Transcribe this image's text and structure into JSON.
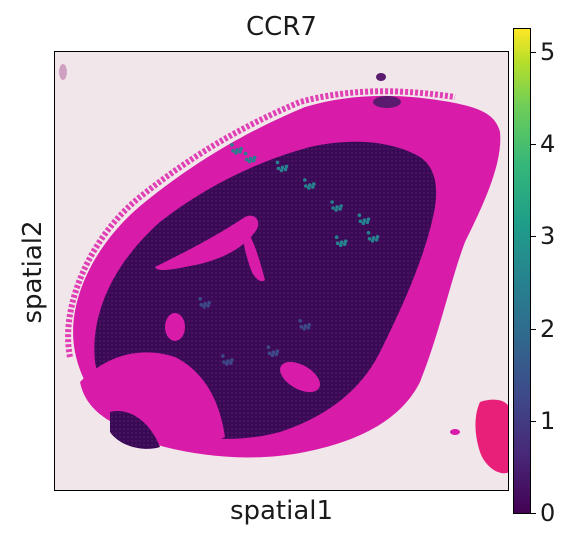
{
  "chart_data": {
    "type": "heatmap",
    "title": "CCR7",
    "xlabel": "spatial1",
    "ylabel": "spatial2",
    "colorbar": {
      "colormap": "viridis",
      "range": [
        0,
        5.25
      ],
      "ticks": [
        "0",
        "1",
        "2",
        "3",
        "4",
        "5"
      ],
      "colors": [
        "#440154",
        "#3e4989",
        "#26828e",
        "#35b779",
        "#fde725"
      ]
    },
    "background_tissue_color": "#d81ba8",
    "expression_spots": [
      {
        "x": 0.4,
        "y": 0.22,
        "value": 2.5
      },
      {
        "x": 0.43,
        "y": 0.24,
        "value": 2.0
      },
      {
        "x": 0.5,
        "y": 0.26,
        "value": 2.2
      },
      {
        "x": 0.56,
        "y": 0.3,
        "value": 3.0
      },
      {
        "x": 0.62,
        "y": 0.35,
        "value": 2.8
      },
      {
        "x": 0.68,
        "y": 0.38,
        "value": 3.2
      },
      {
        "x": 0.7,
        "y": 0.42,
        "value": 2.6
      },
      {
        "x": 0.63,
        "y": 0.43,
        "value": 2.0
      },
      {
        "x": 0.33,
        "y": 0.57,
        "value": 1.5
      },
      {
        "x": 0.55,
        "y": 0.62,
        "value": 1.8
      },
      {
        "x": 0.48,
        "y": 0.68,
        "value": 1.2
      },
      {
        "x": 0.38,
        "y": 0.7,
        "value": 1.0
      }
    ]
  }
}
